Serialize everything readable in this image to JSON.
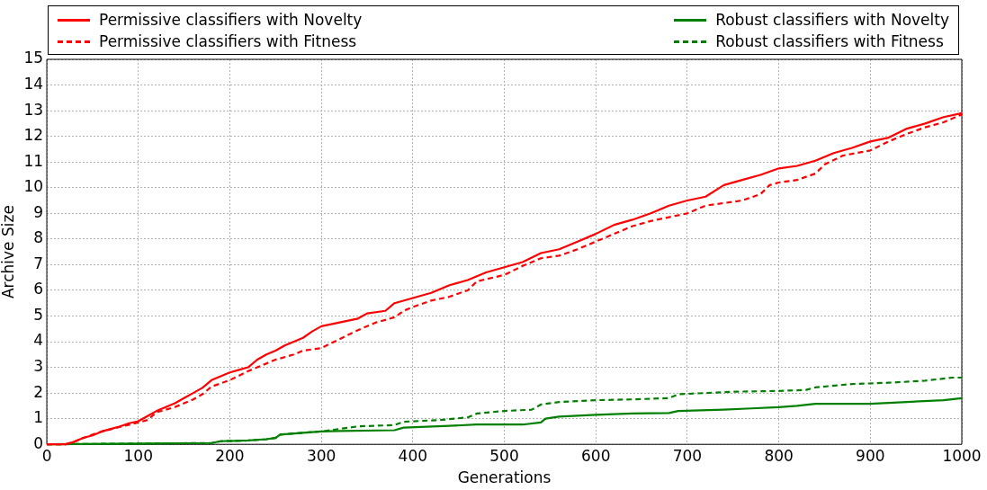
{
  "chart_data": {
    "type": "line",
    "xlabel": "Generations",
    "ylabel": "Archive Size",
    "xlim": [
      0,
      1000
    ],
    "xticks": [
      0,
      100,
      200,
      300,
      400,
      500,
      600,
      700,
      800,
      900,
      1000
    ],
    "ylim": [
      0,
      15
    ],
    "yticks": [
      0,
      1,
      2,
      3,
      4,
      5,
      6,
      7,
      8,
      9,
      10,
      11,
      12,
      13,
      14,
      15
    ],
    "grid": true,
    "legend": "top",
    "series": [
      {
        "name": "Permissive classifiers with Novelty",
        "color": "#ff0000",
        "line_style": "solid",
        "x": [
          0,
          20,
          30,
          40,
          50,
          60,
          70,
          80,
          90,
          100,
          110,
          120,
          130,
          140,
          150,
          160,
          170,
          180,
          190,
          200,
          210,
          220,
          230,
          240,
          250,
          260,
          270,
          280,
          290,
          300,
          320,
          340,
          350,
          370,
          380,
          400,
          420,
          440,
          460,
          480,
          500,
          520,
          540,
          560,
          580,
          600,
          620,
          640,
          660,
          680,
          700,
          720,
          740,
          760,
          780,
          800,
          820,
          840,
          860,
          880,
          900,
          920,
          940,
          960,
          980,
          1000
        ],
        "values": [
          0,
          0,
          0.1,
          0.25,
          0.35,
          0.5,
          0.6,
          0.7,
          0.82,
          0.9,
          1.1,
          1.3,
          1.45,
          1.6,
          1.8,
          2.0,
          2.2,
          2.5,
          2.65,
          2.8,
          2.9,
          3.0,
          3.3,
          3.5,
          3.65,
          3.85,
          4.0,
          4.15,
          4.4,
          4.6,
          4.75,
          4.9,
          5.1,
          5.2,
          5.5,
          5.7,
          5.9,
          6.2,
          6.4,
          6.7,
          6.9,
          7.1,
          7.45,
          7.6,
          7.9,
          8.2,
          8.55,
          8.75,
          9.0,
          9.3,
          9.5,
          9.65,
          10.1,
          10.3,
          10.5,
          10.75,
          10.85,
          11.05,
          11.35,
          11.55,
          11.8,
          11.95,
          12.3,
          12.5,
          12.75,
          12.9
        ]
      },
      {
        "name": "Permissive classifiers with Fitness",
        "color": "#ff0000",
        "line_style": "dashed",
        "x": [
          0,
          20,
          30,
          40,
          60,
          80,
          100,
          110,
          120,
          140,
          160,
          170,
          180,
          200,
          220,
          230,
          250,
          270,
          280,
          300,
          320,
          340,
          360,
          380,
          390,
          400,
          420,
          440,
          460,
          470,
          500,
          520,
          540,
          560,
          580,
          600,
          620,
          640,
          660,
          680,
          700,
          720,
          740,
          760,
          780,
          790,
          800,
          820,
          840,
          850,
          870,
          900,
          920,
          940,
          960,
          980,
          1000
        ],
        "values": [
          0,
          0,
          0.1,
          0.25,
          0.5,
          0.68,
          0.85,
          0.95,
          1.25,
          1.45,
          1.75,
          1.95,
          2.25,
          2.5,
          2.85,
          3.0,
          3.3,
          3.5,
          3.65,
          3.75,
          4.1,
          4.45,
          4.75,
          4.95,
          5.2,
          5.35,
          5.6,
          5.75,
          6.0,
          6.35,
          6.6,
          6.95,
          7.25,
          7.35,
          7.6,
          7.9,
          8.2,
          8.5,
          8.7,
          8.85,
          9.0,
          9.3,
          9.4,
          9.5,
          9.75,
          10.1,
          10.2,
          10.3,
          10.55,
          10.9,
          11.25,
          11.45,
          11.8,
          12.1,
          12.35,
          12.55,
          12.85
        ]
      },
      {
        "name": "Robust classifiers with Novelty",
        "color": "#008000",
        "line_style": "solid",
        "x": [
          0,
          100,
          180,
          190,
          220,
          240,
          250,
          255,
          280,
          300,
          320,
          380,
          390,
          440,
          470,
          520,
          540,
          545,
          560,
          600,
          640,
          680,
          690,
          740,
          770,
          800,
          820,
          840,
          900,
          940,
          980,
          1000
        ],
        "values": [
          0,
          0.03,
          0.05,
          0.12,
          0.15,
          0.2,
          0.25,
          0.38,
          0.45,
          0.5,
          0.52,
          0.55,
          0.65,
          0.72,
          0.77,
          0.77,
          0.85,
          1.0,
          1.08,
          1.15,
          1.2,
          1.22,
          1.3,
          1.35,
          1.4,
          1.45,
          1.5,
          1.58,
          1.58,
          1.65,
          1.72,
          1.8
        ]
      },
      {
        "name": "Robust classifiers with Fitness",
        "color": "#008000",
        "line_style": "dashed",
        "x": [
          0,
          100,
          180,
          190,
          220,
          240,
          250,
          255,
          280,
          300,
          310,
          340,
          380,
          390,
          430,
          460,
          470,
          500,
          530,
          540,
          560,
          600,
          640,
          680,
          690,
          720,
          750,
          800,
          830,
          840,
          880,
          920,
          960,
          990,
          1000
        ],
        "values": [
          0,
          0.03,
          0.05,
          0.12,
          0.15,
          0.2,
          0.25,
          0.38,
          0.45,
          0.5,
          0.55,
          0.7,
          0.75,
          0.88,
          0.95,
          1.05,
          1.2,
          1.3,
          1.35,
          1.55,
          1.65,
          1.72,
          1.75,
          1.8,
          1.95,
          2.0,
          2.05,
          2.08,
          2.12,
          2.22,
          2.35,
          2.4,
          2.48,
          2.6,
          2.6
        ]
      }
    ]
  }
}
